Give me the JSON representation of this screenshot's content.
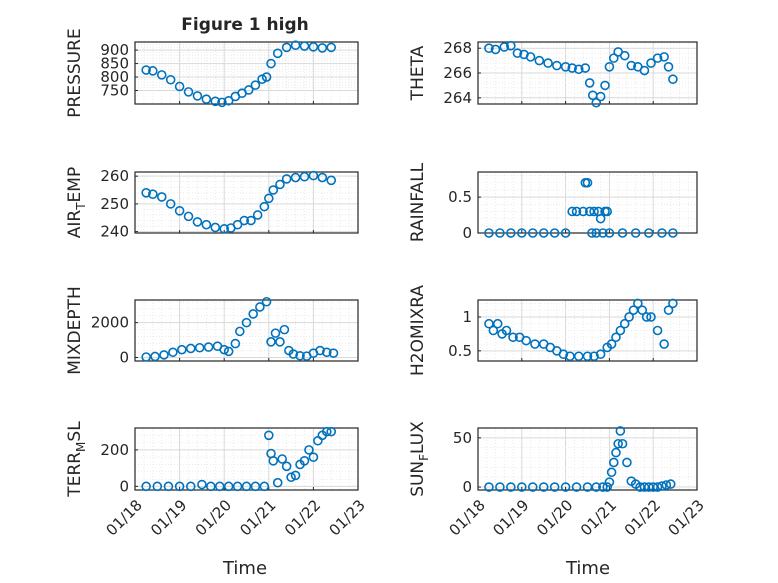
{
  "figure": {
    "title": "Figure 1 high"
  },
  "colors": {
    "marker": "#0072BD",
    "axis": "#262626",
    "grid": "#d9d9d9",
    "minor_grid": "#e6e6e6"
  },
  "shared_x": {
    "label": "Time",
    "tick_labels": [
      "01/18",
      "01/19",
      "01/20",
      "01/21",
      "01/22",
      "01/23"
    ]
  },
  "chart_data": [
    {
      "type": "scatter",
      "marker": "open-circle",
      "ylabel": "PRESSURE",
      "ylim": [
        700,
        930
      ],
      "yticks": [
        750,
        800,
        850,
        900
      ],
      "xlim": [
        0,
        5
      ],
      "x": [
        0.25,
        0.4,
        0.6,
        0.8,
        1.0,
        1.2,
        1.4,
        1.6,
        1.8,
        1.95,
        2.1,
        2.25,
        2.4,
        2.55,
        2.7,
        2.85,
        2.95,
        3.05,
        3.2,
        3.4,
        3.6,
        3.8,
        4.0,
        4.2,
        4.4
      ],
      "y": [
        826,
        823,
        808,
        790,
        765,
        745,
        730,
        718,
        710,
        706,
        712,
        728,
        740,
        752,
        770,
        792,
        800,
        850,
        888,
        910,
        918,
        915,
        912,
        908,
        910
      ]
    },
    {
      "type": "scatter",
      "marker": "open-circle",
      "ylabel": "THETA",
      "ylim": [
        263.5,
        268.5
      ],
      "yticks": [
        264,
        266,
        268
      ],
      "xlim": [
        0,
        5
      ],
      "x": [
        0.25,
        0.4,
        0.6,
        0.75,
        0.9,
        1.05,
        1.2,
        1.4,
        1.6,
        1.8,
        2.0,
        2.15,
        2.3,
        2.45,
        2.55,
        2.62,
        2.7,
        2.8,
        2.9,
        3.0,
        3.1,
        3.2,
        3.35,
        3.5,
        3.65,
        3.8,
        3.95,
        4.1,
        4.25,
        4.35,
        4.45
      ],
      "y": [
        268.0,
        267.9,
        268.1,
        268.2,
        267.6,
        267.5,
        267.3,
        267.0,
        266.8,
        266.6,
        266.5,
        266.4,
        266.3,
        266.4,
        265.2,
        264.2,
        263.6,
        264.1,
        265.0,
        266.5,
        267.2,
        267.7,
        267.4,
        266.6,
        266.5,
        266.2,
        266.8,
        267.2,
        267.3,
        266.5,
        265.5
      ]
    },
    {
      "type": "scatter",
      "marker": "open-circle",
      "ylabel": "AIR_TEMP",
      "ylim": [
        239.5,
        261.5
      ],
      "yticks": [
        240,
        250,
        260
      ],
      "xlim": [
        0,
        5
      ],
      "x": [
        0.25,
        0.4,
        0.6,
        0.8,
        1.0,
        1.2,
        1.4,
        1.6,
        1.8,
        2.0,
        2.15,
        2.3,
        2.45,
        2.6,
        2.75,
        2.9,
        3.0,
        3.1,
        3.25,
        3.4,
        3.6,
        3.8,
        4.0,
        4.2,
        4.4
      ],
      "y": [
        254,
        253.5,
        252.5,
        250,
        247.5,
        245.5,
        243.5,
        242.5,
        241.5,
        241,
        241.3,
        242.5,
        244,
        244,
        246,
        249,
        252,
        255,
        257,
        259,
        259.5,
        259.8,
        260.2,
        259.5,
        258.5
      ]
    },
    {
      "type": "scatter",
      "marker": "open-circle",
      "ylabel": "RAINFALL",
      "ylim": [
        0,
        0.85
      ],
      "yticks": [
        0,
        0.5
      ],
      "xlim": [
        0,
        5
      ],
      "x": [
        0.25,
        0.5,
        0.75,
        1.0,
        1.25,
        1.5,
        1.75,
        2.0,
        2.15,
        2.25,
        2.4,
        2.45,
        2.5,
        2.55,
        2.6,
        2.65,
        2.7,
        2.75,
        2.8,
        2.85,
        2.9,
        2.95,
        3.0,
        3.3,
        3.6,
        3.9,
        4.2,
        4.45
      ],
      "y": [
        0,
        0,
        0,
        0,
        0,
        0,
        0,
        0,
        0.3,
        0.3,
        0.3,
        0.7,
        0.7,
        0.3,
        0,
        0.3,
        0,
        0.3,
        0.2,
        0,
        0.3,
        0.3,
        0,
        0,
        0,
        0,
        0,
        0
      ]
    },
    {
      "type": "scatter",
      "marker": "open-circle",
      "ylabel": "MIXDEPTH",
      "ylim": [
        -200,
        3300
      ],
      "yticks": [
        0,
        2000
      ],
      "xlim": [
        0,
        5
      ],
      "x": [
        0.25,
        0.45,
        0.65,
        0.85,
        1.05,
        1.25,
        1.45,
        1.65,
        1.85,
        2.0,
        2.1,
        2.25,
        2.35,
        2.5,
        2.65,
        2.8,
        2.95,
        3.05,
        3.15,
        3.25,
        3.35,
        3.45,
        3.55,
        3.7,
        3.85,
        4.0,
        4.15,
        4.3,
        4.45
      ],
      "y": [
        30,
        60,
        150,
        300,
        450,
        520,
        560,
        600,
        650,
        450,
        350,
        800,
        1500,
        2000,
        2500,
        2900,
        3200,
        900,
        1400,
        900,
        1600,
        400,
        200,
        100,
        80,
        250,
        400,
        300,
        250
      ]
    },
    {
      "type": "scatter",
      "marker": "open-circle",
      "ylabel": "H2OMIXRA",
      "ylim": [
        0.35,
        1.25
      ],
      "yticks": [
        0.5,
        1
      ],
      "xlim": [
        0,
        5
      ],
      "x": [
        0.25,
        0.35,
        0.45,
        0.55,
        0.65,
        0.8,
        0.95,
        1.1,
        1.3,
        1.5,
        1.65,
        1.8,
        1.95,
        2.1,
        2.3,
        2.5,
        2.65,
        2.8,
        2.95,
        3.05,
        3.15,
        3.25,
        3.35,
        3.45,
        3.55,
        3.65,
        3.75,
        3.85,
        3.95,
        4.1,
        4.25,
        4.35,
        4.45
      ],
      "y": [
        0.9,
        0.8,
        0.9,
        0.75,
        0.8,
        0.7,
        0.7,
        0.65,
        0.6,
        0.6,
        0.55,
        0.5,
        0.45,
        0.42,
        0.42,
        0.42,
        0.42,
        0.45,
        0.55,
        0.6,
        0.7,
        0.8,
        0.9,
        1.0,
        1.1,
        1.2,
        1.1,
        1.0,
        1.0,
        0.8,
        0.6,
        1.1,
        1.2
      ]
    },
    {
      "type": "scatter",
      "marker": "open-circle",
      "ylabel": "TERR_MSL",
      "ylim": [
        -20,
        320
      ],
      "yticks": [
        0,
        200
      ],
      "xlim": [
        0,
        5
      ],
      "x": [
        0.25,
        0.5,
        0.75,
        1.0,
        1.25,
        1.5,
        1.7,
        1.9,
        2.1,
        2.3,
        2.5,
        2.7,
        2.9,
        3.0,
        3.05,
        3.1,
        3.2,
        3.3,
        3.4,
        3.5,
        3.6,
        3.7,
        3.8,
        3.9,
        4.0,
        4.1,
        4.2,
        4.3,
        4.4
      ],
      "y": [
        0,
        0,
        0,
        0,
        0,
        10,
        0,
        0,
        0,
        0,
        0,
        0,
        0,
        280,
        180,
        140,
        20,
        150,
        110,
        50,
        60,
        120,
        140,
        200,
        160,
        250,
        280,
        300,
        300
      ]
    },
    {
      "type": "scatter",
      "marker": "open-circle",
      "ylabel": "SUN_FLUX",
      "ylim": [
        -3,
        60
      ],
      "yticks": [
        0,
        50
      ],
      "xlim": [
        0,
        5
      ],
      "x": [
        0.25,
        0.5,
        0.75,
        1.0,
        1.25,
        1.5,
        1.75,
        2.0,
        2.25,
        2.5,
        2.7,
        2.85,
        2.95,
        3.0,
        3.05,
        3.1,
        3.15,
        3.2,
        3.25,
        3.3,
        3.4,
        3.5,
        3.6,
        3.7,
        3.8,
        3.9,
        4.0,
        4.1,
        4.2,
        4.3,
        4.4
      ],
      "y": [
        0,
        0,
        0,
        0,
        0,
        0,
        0,
        0,
        0,
        0,
        0,
        0,
        0,
        5,
        15,
        25,
        35,
        44,
        57,
        44,
        25,
        6,
        3,
        0,
        0,
        0,
        0,
        0,
        1,
        2,
        3
      ]
    }
  ]
}
